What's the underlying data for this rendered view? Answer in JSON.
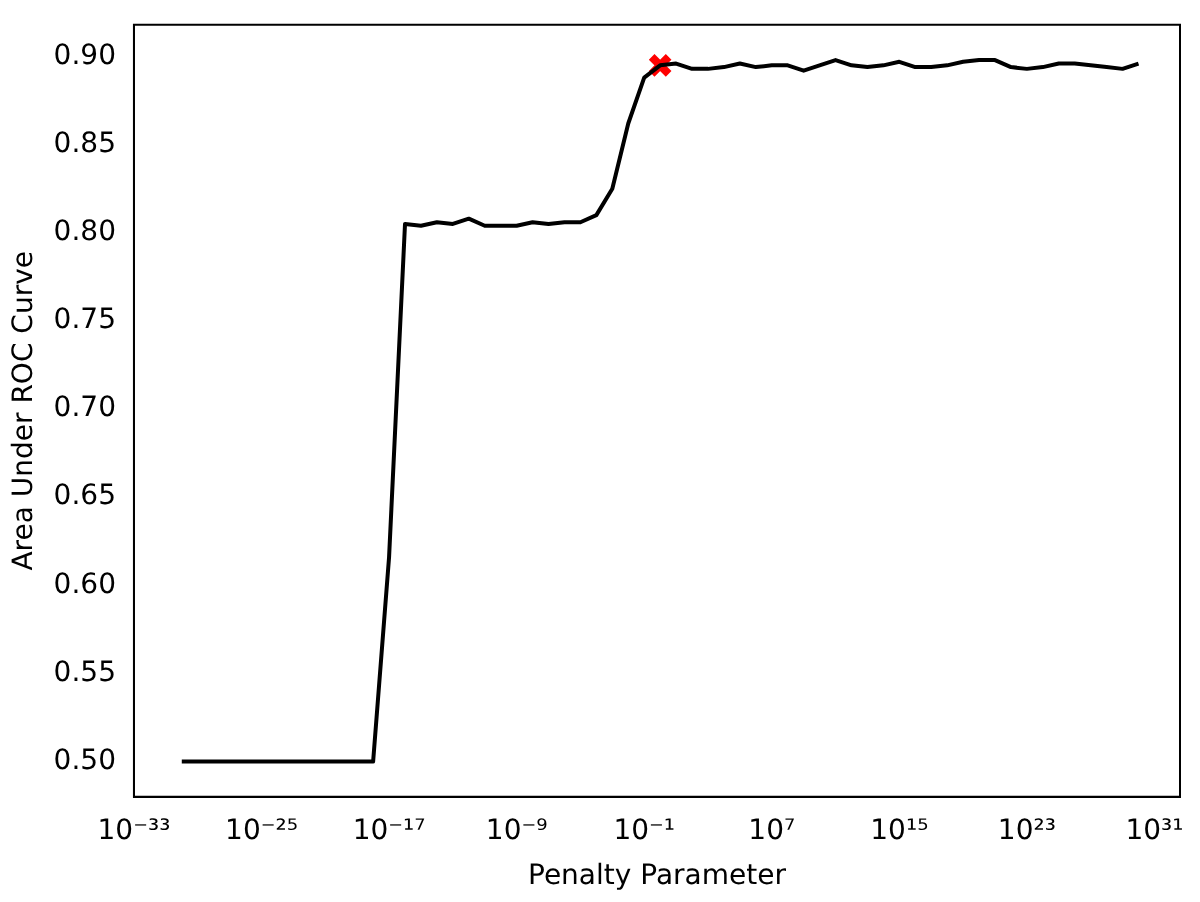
{
  "chart_data": {
    "type": "line",
    "xlabel": "Penalty Parameter",
    "ylabel": "Area Under ROC Curve",
    "log": "x",
    "grid": false,
    "legend": false,
    "xlim": [
      1e-33,
      4e+32
    ],
    "xticks": [
      {
        "value": 1e-33,
        "label": "10⁻³³"
      },
      {
        "value": 1e-25,
        "label": "10⁻²⁵"
      },
      {
        "value": 1e-17,
        "label": "10⁻¹⁷"
      },
      {
        "value": 1e-09,
        "label": "10⁻⁹"
      },
      {
        "value": 0.1,
        "label": "10⁻¹"
      },
      {
        "value": 10000000.0,
        "label": "10⁷"
      },
      {
        "value": 1000000000000000.0,
        "label": "10¹⁵"
      },
      {
        "value": 1e+23,
        "label": "10²³"
      },
      {
        "value": 1e+31,
        "label": "10³¹"
      }
    ],
    "ylim": [
      0.48,
      0.918
    ],
    "yticks": [
      {
        "value": 0.5,
        "label": "0.50"
      },
      {
        "value": 0.55,
        "label": "0.55"
      },
      {
        "value": 0.6,
        "label": "0.60"
      },
      {
        "value": 0.65,
        "label": "0.65"
      },
      {
        "value": 0.7,
        "label": "0.70"
      },
      {
        "value": 0.75,
        "label": "0.75"
      },
      {
        "value": 0.8,
        "label": "0.80"
      },
      {
        "value": 0.85,
        "label": "0.85"
      },
      {
        "value": 0.9,
        "label": "0.90"
      }
    ],
    "series": [
      {
        "type": "line",
        "color": "#000000",
        "marker": "none",
        "line_style": "solid",
        "x": [
          1e-30,
          1e-29,
          1e-28,
          1e-27,
          1e-26,
          1e-25,
          1e-24,
          1e-23,
          1e-22,
          1e-21,
          1e-20,
          1e-19,
          1e-18,
          1e-17,
          1e-16,
          1e-15,
          1e-14,
          1e-13,
          1e-12,
          1e-11,
          1e-10,
          1e-09,
          1e-08,
          1e-07,
          1e-06,
          1e-05,
          0.0001,
          0.001,
          0.01,
          0.1,
          1,
          10.0,
          100.0,
          1000.0,
          10000.0,
          100000.0,
          1000000.0,
          10000000.0,
          100000000.0,
          1000000000.0,
          10000000000.0,
          100000000000.0,
          1000000000000.0,
          10000000000000.0,
          100000000000000.0,
          1000000000000000.0,
          1e+16,
          1e+17,
          1e+18,
          1e+19,
          1e+20,
          1e+21,
          1e+22,
          1e+23,
          1e+24,
          1e+25,
          1e+26,
          1e+27,
          1e+28,
          1e+29,
          1e+30
        ],
        "values": [
          0.5,
          0.5,
          0.5,
          0.5,
          0.5,
          0.5,
          0.5,
          0.5,
          0.5,
          0.5,
          0.5,
          0.5,
          0.5,
          0.616,
          0.805,
          0.804,
          0.806,
          0.805,
          0.808,
          0.804,
          0.804,
          0.804,
          0.806,
          0.805,
          0.806,
          0.806,
          0.81,
          0.825,
          0.862,
          0.888,
          0.895,
          0.896,
          0.893,
          0.893,
          0.894,
          0.896,
          0.894,
          0.895,
          0.895,
          0.892,
          0.895,
          0.898,
          0.895,
          0.894,
          0.895,
          0.897,
          0.894,
          0.894,
          0.895,
          0.897,
          0.898,
          0.898,
          0.894,
          0.893,
          0.894,
          0.896,
          0.896,
          0.895,
          0.894,
          0.893,
          0.896
        ]
      },
      {
        "type": "scatter",
        "color": "#ff0000",
        "marker": "cross",
        "x": [
          1
        ],
        "values": [
          0.895
        ]
      }
    ]
  }
}
